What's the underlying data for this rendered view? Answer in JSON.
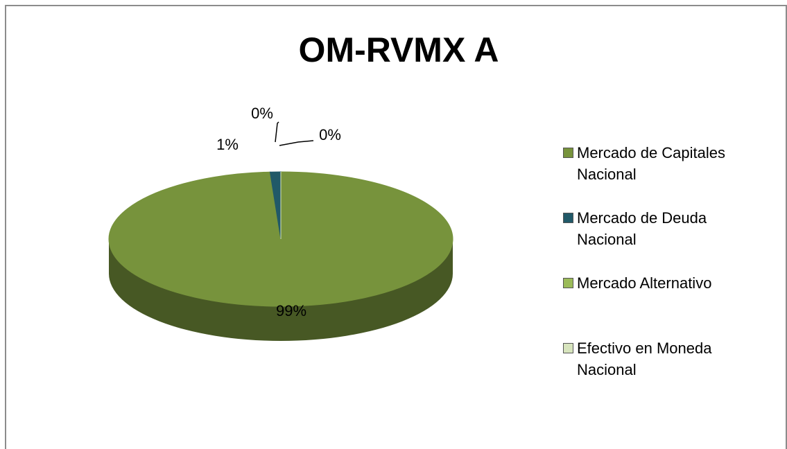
{
  "chart_data": {
    "type": "pie",
    "title": "OM-RVMX A",
    "categories": [
      "Mercado de Capitales Nacional",
      "Mercado de Deuda Nacional",
      "Mercado Alternativo",
      "Efectivo en Moneda Nacional"
    ],
    "values": [
      99,
      1,
      0,
      0
    ],
    "value_labels": [
      "99%",
      "1%",
      "0%",
      "0%"
    ],
    "colors": [
      "#77933c",
      "#215968",
      "#9bbb59",
      "#d7e4bd"
    ],
    "legend": "right"
  }
}
